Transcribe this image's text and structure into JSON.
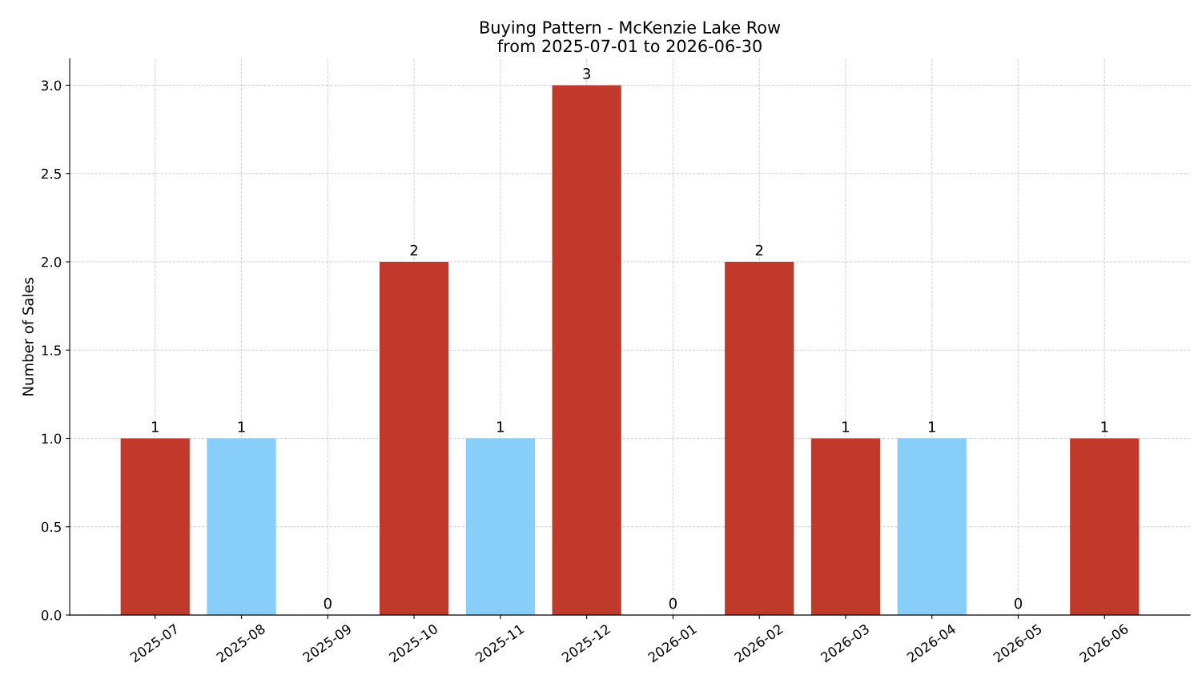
{
  "chart_data": {
    "type": "bar",
    "title": "Buying Pattern - McKenzie Lake Row\nfrom 2025-07-01 to 2026-06-30",
    "ylabel": "Number of Sales",
    "categories": [
      "2025-07",
      "2025-08",
      "2025-09",
      "2025-10",
      "2025-11",
      "2025-12",
      "2026-01",
      "2026-02",
      "2026-03",
      "2026-04",
      "2026-05",
      "2026-06"
    ],
    "values": [
      1,
      1,
      0,
      2,
      1,
      3,
      0,
      2,
      1,
      1,
      0,
      1
    ],
    "colors": [
      "#c0392b",
      "#87cefa",
      "#c0392b",
      "#c0392b",
      "#87cefa",
      "#c0392b",
      "#c0392b",
      "#c0392b",
      "#c0392b",
      "#87cefa",
      "#c0392b",
      "#c0392b"
    ],
    "ylim": [
      0,
      3.15
    ],
    "yticks": [
      {
        "value": 0,
        "label": "0.0"
      },
      {
        "value": 0.5,
        "label": "0.5"
      },
      {
        "value": 1,
        "label": "1.0"
      },
      {
        "value": 1.5,
        "label": "1.5"
      },
      {
        "value": 2,
        "label": "2.0"
      },
      {
        "value": 2.5,
        "label": "2.5"
      },
      {
        "value": 3,
        "label": "3.0"
      }
    ],
    "grid": true,
    "data_labels": true
  }
}
